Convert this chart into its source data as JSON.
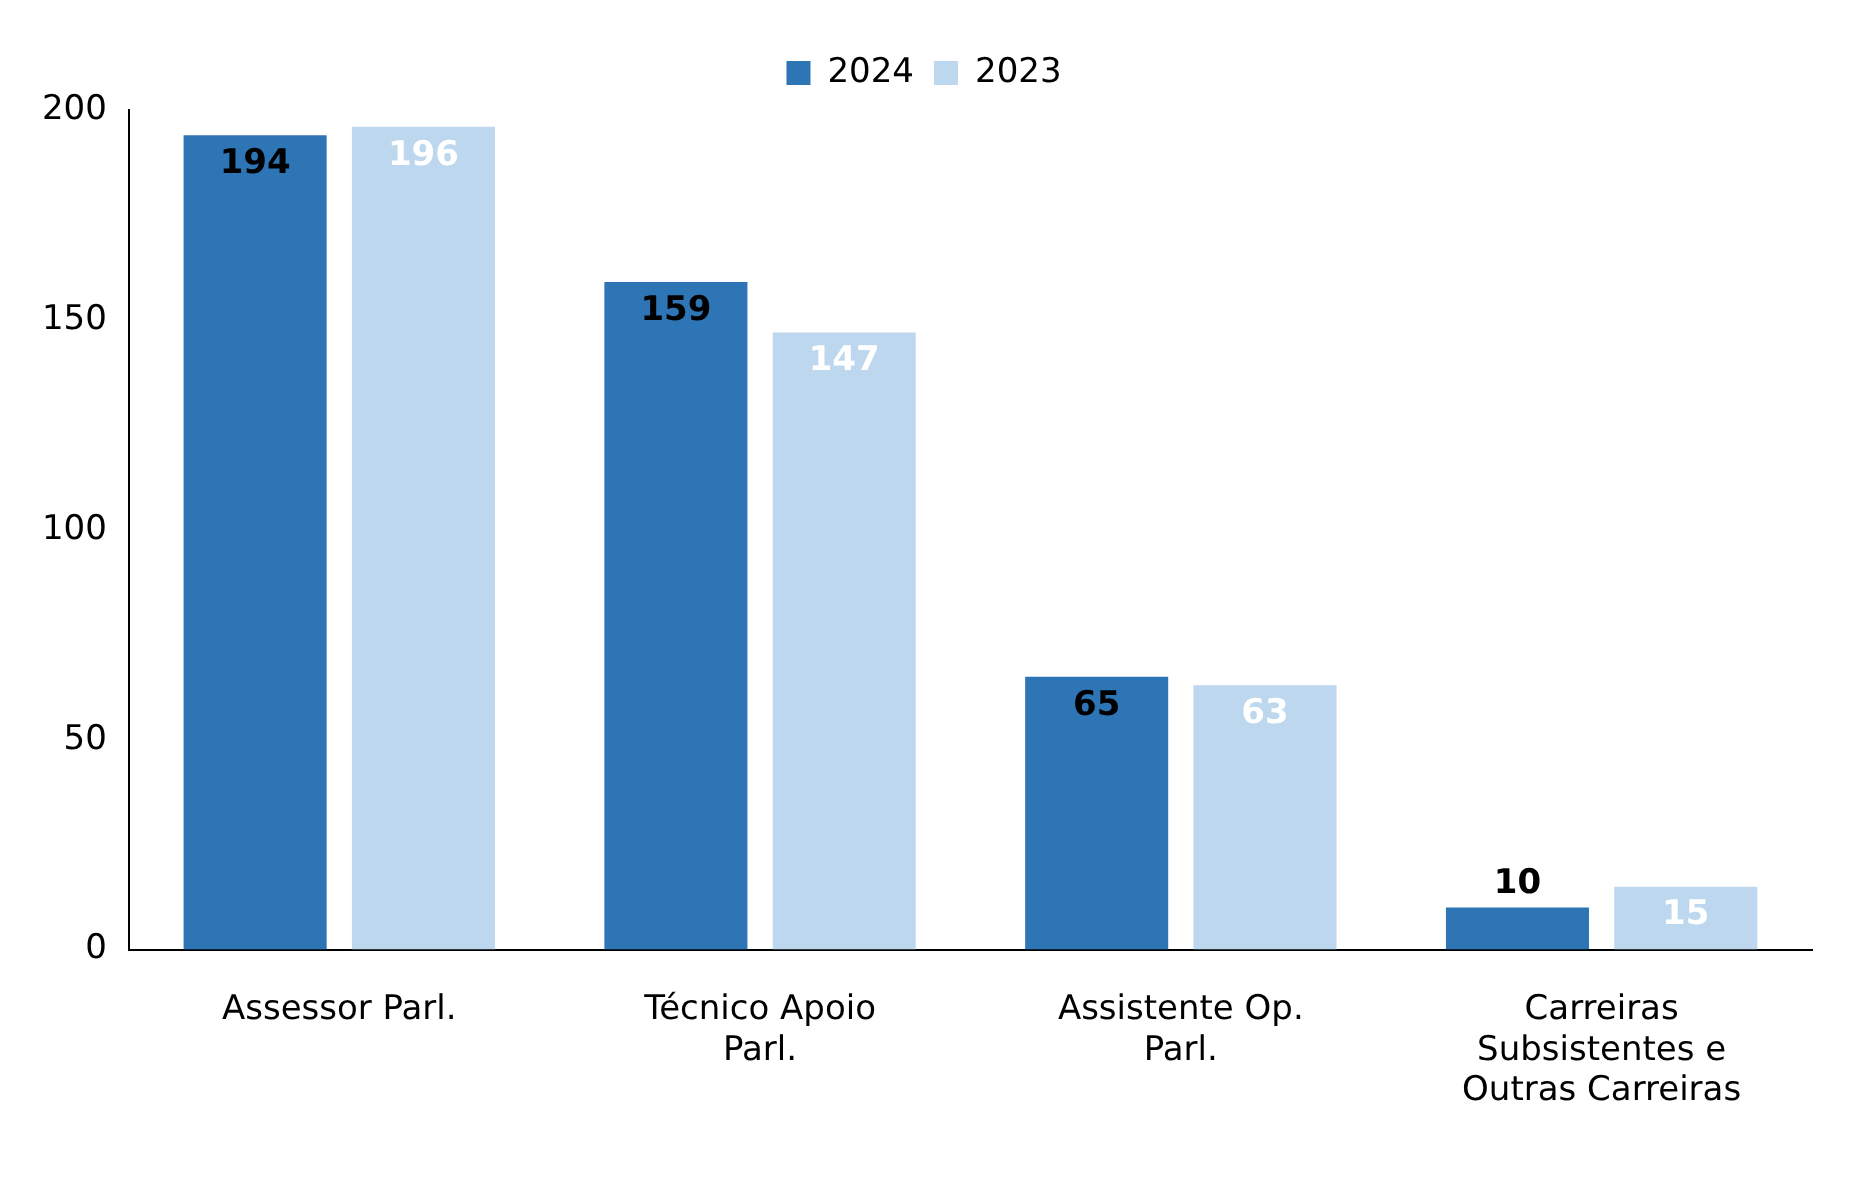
{
  "chart_data": {
    "type": "bar",
    "categories": [
      "Assessor Parl.",
      "Técnico Apoio Parl.",
      "Assistente Op. Parl.",
      "Carreiras Subsistentes e Outras Carreiras"
    ],
    "series": [
      {
        "name": "2024",
        "color": "#2e75b6",
        "values": [
          194,
          159,
          65,
          10
        ]
      },
      {
        "name": "2023",
        "color": "#bdd7ee",
        "values": [
          196,
          147,
          63,
          15
        ]
      }
    ],
    "ylim": [
      0,
      200
    ],
    "yticks": [
      0,
      50,
      100,
      150,
      200
    ],
    "grid": false,
    "legend": "top",
    "data_labels": true
  }
}
